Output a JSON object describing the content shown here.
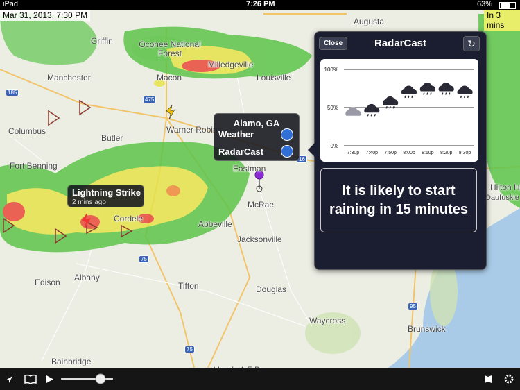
{
  "status_bar": {
    "device": "iPad",
    "time": "7:26 PM",
    "battery": "63%"
  },
  "timestamp": "Mar 31, 2013, 7:30 PM",
  "forecast_badge": "In 3 mins",
  "map": {
    "labels": [
      "Griffin",
      "Oconee National Forest",
      "Milledgeville",
      "Manchester",
      "Macon",
      "Louisville",
      "Warner Robins",
      "Butler",
      "Columbus",
      "Fort Benning",
      "Eastman",
      "McRae",
      "Abbeville",
      "Cordele",
      "Jacksonville",
      "Albany",
      "Edison",
      "Tifton",
      "Douglas",
      "Waycross",
      "Brunswick",
      "Bainbridge",
      "Moody A F B",
      "Hilton Head",
      "Daufuskie Island",
      "Augusta"
    ],
    "shields": [
      "185",
      "475",
      "75",
      "16",
      "95",
      "75"
    ]
  },
  "location_callout": {
    "title": "Alamo, GA",
    "rows": [
      "Weather",
      "RadarCast"
    ]
  },
  "lightning_callout": {
    "title": "Lightning Strike",
    "subtitle": "2 mins ago"
  },
  "radarcast": {
    "close": "Close",
    "title": "RadarCast",
    "chart": {
      "ylim": [
        0,
        100
      ],
      "yticks": [
        {
          "value": 0,
          "label": "0%"
        },
        {
          "value": 50,
          "label": "50%"
        },
        {
          "value": 100,
          "label": "100%"
        }
      ],
      "categories": [
        "7:30p",
        "7:40p",
        "7:50p",
        "8:00p",
        "8:10p",
        "8:20p",
        "8:30p"
      ],
      "values": [
        43,
        47,
        57,
        71,
        75,
        75,
        71
      ]
    },
    "message": "It is likely to start raining in 15 minutes"
  }
}
